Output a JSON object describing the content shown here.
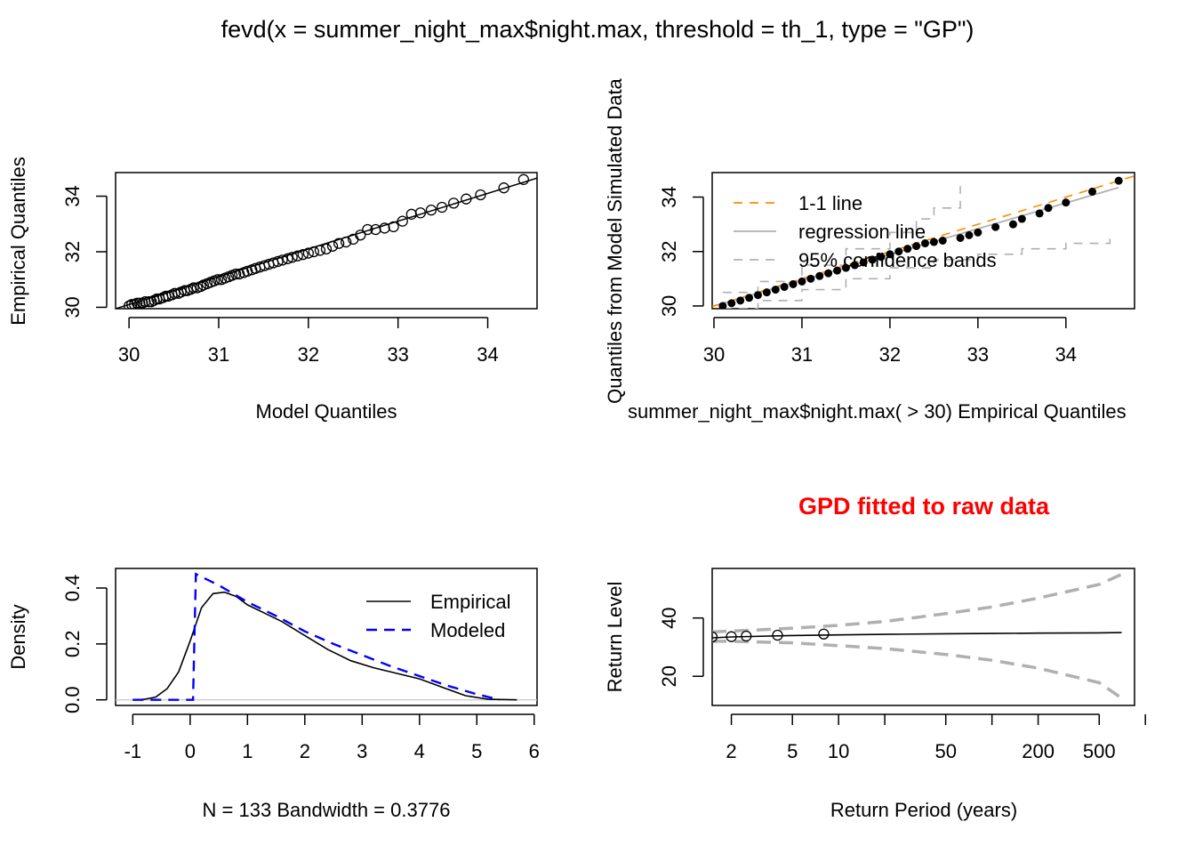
{
  "figure": {
    "title": "fevd(x = summer_night_max$night.max, threshold = th_1, type = \"GP\")"
  },
  "chart_data": [
    {
      "type": "scatter",
      "id": "qq",
      "xlabel": "Model Quantiles",
      "ylabel": "Empirical Quantiles",
      "xlim": [
        29.85,
        34.55
      ],
      "ylim": [
        29.95,
        34.85
      ],
      "xticks": [
        30,
        31,
        32,
        33,
        34
      ],
      "yticks": [
        30,
        32,
        34
      ],
      "points": [
        [
          30.0,
          30.05
        ],
        [
          30.03,
          30.1
        ],
        [
          30.06,
          30.1
        ],
        [
          30.09,
          30.15
        ],
        [
          30.12,
          30.15
        ],
        [
          30.15,
          30.15
        ],
        [
          30.18,
          30.2
        ],
        [
          30.22,
          30.2
        ],
        [
          30.25,
          30.2
        ],
        [
          30.28,
          30.25
        ],
        [
          30.31,
          30.3
        ],
        [
          30.34,
          30.3
        ],
        [
          30.38,
          30.35
        ],
        [
          30.41,
          30.4
        ],
        [
          30.44,
          30.4
        ],
        [
          30.48,
          30.45
        ],
        [
          30.51,
          30.5
        ],
        [
          30.55,
          30.5
        ],
        [
          30.58,
          30.55
        ],
        [
          30.62,
          30.6
        ],
        [
          30.65,
          30.6
        ],
        [
          30.69,
          30.65
        ],
        [
          30.72,
          30.7
        ],
        [
          30.76,
          30.7
        ],
        [
          30.8,
          30.75
        ],
        [
          30.83,
          30.8
        ],
        [
          30.87,
          30.85
        ],
        [
          30.91,
          30.9
        ],
        [
          30.95,
          30.95
        ],
        [
          30.99,
          31.0
        ],
        [
          31.03,
          31.0
        ],
        [
          31.07,
          31.05
        ],
        [
          31.11,
          31.1
        ],
        [
          31.15,
          31.15
        ],
        [
          31.19,
          31.2
        ],
        [
          31.23,
          31.2
        ],
        [
          31.28,
          31.25
        ],
        [
          31.32,
          31.3
        ],
        [
          31.37,
          31.35
        ],
        [
          31.41,
          31.4
        ],
        [
          31.46,
          31.45
        ],
        [
          31.51,
          31.5
        ],
        [
          31.56,
          31.55
        ],
        [
          31.61,
          31.6
        ],
        [
          31.66,
          31.65
        ],
        [
          31.71,
          31.7
        ],
        [
          31.77,
          31.75
        ],
        [
          31.82,
          31.8
        ],
        [
          31.88,
          31.85
        ],
        [
          31.94,
          31.9
        ],
        [
          32.0,
          31.95
        ],
        [
          32.06,
          32.0
        ],
        [
          32.13,
          32.05
        ],
        [
          32.2,
          32.1
        ],
        [
          32.27,
          32.2
        ],
        [
          32.34,
          32.3
        ],
        [
          32.42,
          32.35
        ],
        [
          32.5,
          32.45
        ],
        [
          32.58,
          32.6
        ],
        [
          32.66,
          32.8
        ],
        [
          32.75,
          32.8
        ],
        [
          32.85,
          32.85
        ],
        [
          32.95,
          32.9
        ],
        [
          33.05,
          33.1
        ],
        [
          33.15,
          33.35
        ],
        [
          33.25,
          33.4
        ],
        [
          33.37,
          33.5
        ],
        [
          33.49,
          33.6
        ],
        [
          33.62,
          33.75
        ],
        [
          33.76,
          33.9
        ],
        [
          33.92,
          34.05
        ],
        [
          34.18,
          34.3
        ],
        [
          34.4,
          34.6
        ]
      ],
      "line": [
        [
          29.85,
          29.95
        ],
        [
          34.55,
          34.65
        ]
      ]
    },
    {
      "type": "scatter",
      "id": "sim",
      "xlabel": "summer_night_max$night.max( > 30) Empirical Quantiles",
      "ylabel": "Quantiles from Model Simulated Data",
      "xlim": [
        29.98,
        34.78
      ],
      "ylim": [
        29.9,
        34.9
      ],
      "xticks": [
        30,
        31,
        32,
        33,
        34
      ],
      "yticks": [
        30,
        32,
        34
      ],
      "legend": [
        {
          "label": "1-1 line",
          "color": "#ff8c00",
          "dash": "10,8"
        },
        {
          "label": "regression line",
          "color": "#b0b0b0",
          "dash": ""
        },
        {
          "label": "95% confidence bands",
          "color": "#b0b0b0",
          "dash": "10,8"
        }
      ],
      "points": [
        [
          30.1,
          30.0
        ],
        [
          30.2,
          30.1
        ],
        [
          30.3,
          30.2
        ],
        [
          30.4,
          30.3
        ],
        [
          30.5,
          30.4
        ],
        [
          30.6,
          30.5
        ],
        [
          30.7,
          30.6
        ],
        [
          30.8,
          30.7
        ],
        [
          30.9,
          30.8
        ],
        [
          31.0,
          30.9
        ],
        [
          31.1,
          31.0
        ],
        [
          31.2,
          31.1
        ],
        [
          31.3,
          31.2
        ],
        [
          31.4,
          31.3
        ],
        [
          31.5,
          31.4
        ],
        [
          31.6,
          31.5
        ],
        [
          31.7,
          31.6
        ],
        [
          31.8,
          31.7
        ],
        [
          31.9,
          31.8
        ],
        [
          32.0,
          31.9
        ],
        [
          32.1,
          32.0
        ],
        [
          32.2,
          32.1
        ],
        [
          32.3,
          32.2
        ],
        [
          32.4,
          32.3
        ],
        [
          32.5,
          32.35
        ],
        [
          32.6,
          32.4
        ],
        [
          32.8,
          32.5
        ],
        [
          32.9,
          32.6
        ],
        [
          33.0,
          32.7
        ],
        [
          33.2,
          32.9
        ],
        [
          33.4,
          33.0
        ],
        [
          33.5,
          33.2
        ],
        [
          33.7,
          33.4
        ],
        [
          33.8,
          33.6
        ],
        [
          34.0,
          33.8
        ],
        [
          34.3,
          34.2
        ],
        [
          34.6,
          34.6
        ]
      ],
      "one_to_one": [
        [
          29.98,
          29.98
        ],
        [
          34.78,
          34.78
        ]
      ],
      "regression": [
        [
          30.0,
          30.0
        ],
        [
          34.6,
          34.35
        ]
      ],
      "upper_band": [
        [
          30.1,
          30.5
        ],
        [
          30.5,
          30.9
        ],
        [
          31.0,
          31.5
        ],
        [
          31.5,
          32.1
        ],
        [
          32.0,
          32.7
        ],
        [
          32.3,
          33.2
        ],
        [
          32.5,
          33.6
        ],
        [
          32.8,
          34.4
        ]
      ],
      "lower_band": [
        [
          30.1,
          29.9
        ],
        [
          30.5,
          30.2
        ],
        [
          31.0,
          30.6
        ],
        [
          31.5,
          31.0
        ],
        [
          32.0,
          31.4
        ],
        [
          32.5,
          31.7
        ],
        [
          33.0,
          31.9
        ],
        [
          33.5,
          32.1
        ],
        [
          34.0,
          32.3
        ],
        [
          34.5,
          32.5
        ]
      ]
    },
    {
      "type": "line",
      "id": "density",
      "xlabel": "N = 133   Bandwidth = 0.3776",
      "ylabel": "Density",
      "xlim": [
        -1.3,
        6.05
      ],
      "ylim": [
        -0.02,
        0.47
      ],
      "xticks": [
        -1,
        0,
        1,
        2,
        3,
        4,
        5,
        6
      ],
      "yticks": [
        0.0,
        0.2,
        0.4
      ],
      "ytick_labels": [
        "0.0",
        "0.2",
        "0.4"
      ],
      "legend": [
        {
          "label": "Empirical",
          "color": "#000000",
          "dash": ""
        },
        {
          "label": "Modeled",
          "color": "#0000ff",
          "dash": "12,8"
        }
      ],
      "series": [
        {
          "name": "Empirical",
          "x": [
            -1.0,
            -0.8,
            -0.6,
            -0.4,
            -0.2,
            0.0,
            0.2,
            0.4,
            0.6,
            0.8,
            1.0,
            1.3,
            1.6,
            2.0,
            2.4,
            2.8,
            3.2,
            3.6,
            4.0,
            4.4,
            4.8,
            5.2,
            5.7
          ],
          "y": [
            0.0,
            0.002,
            0.01,
            0.04,
            0.1,
            0.21,
            0.33,
            0.38,
            0.385,
            0.37,
            0.34,
            0.31,
            0.28,
            0.23,
            0.18,
            0.14,
            0.115,
            0.095,
            0.075,
            0.045,
            0.015,
            0.002,
            0.0
          ]
        },
        {
          "name": "Modeled",
          "x": [
            -1.0,
            0.05,
            0.1,
            0.5,
            1.0,
            1.5,
            2.0,
            2.5,
            3.0,
            3.5,
            4.0,
            4.5,
            5.0,
            5.4
          ],
          "y": [
            0.0,
            0.0,
            0.45,
            0.41,
            0.35,
            0.3,
            0.245,
            0.2,
            0.16,
            0.12,
            0.085,
            0.05,
            0.02,
            0.0
          ]
        }
      ],
      "zero_line": true
    },
    {
      "type": "line",
      "id": "return",
      "title": "GPD fitted to raw data",
      "title_color": "#ff0000",
      "xlabel": "Return Period (years)",
      "ylabel": "Return Level",
      "xscale": "log",
      "xlim": [
        1.5,
        850
      ],
      "ylim": [
        10,
        57
      ],
      "xticks": [
        2,
        5,
        10,
        50,
        200,
        500
      ],
      "xticks_minor": [
        20,
        100,
        1000
      ],
      "yticks": [
        20,
        40
      ],
      "series": [
        {
          "name": "",
          "x": [
            1.5,
            2,
            5,
            10,
            20,
            50,
            100,
            200,
            500,
            700
          ],
          "y": [
            33.2,
            33.5,
            34.0,
            34.2,
            34.4,
            34.6,
            34.7,
            34.8,
            34.9,
            35.0
          ]
        }
      ],
      "upper_ci": [
        [
          1.5,
          35.2
        ],
        [
          2,
          35.5
        ],
        [
          5,
          36.5
        ],
        [
          10,
          37.5
        ],
        [
          20,
          38.8
        ],
        [
          50,
          41.5
        ],
        [
          100,
          43.8
        ],
        [
          200,
          46.8
        ],
        [
          500,
          51.5
        ],
        [
          700,
          55.0
        ]
      ],
      "lower_ci": [
        [
          1.5,
          32.0
        ],
        [
          2,
          32.0
        ],
        [
          5,
          31.5
        ],
        [
          10,
          30.5
        ],
        [
          20,
          29.5
        ],
        [
          50,
          27.5
        ],
        [
          100,
          25.5
        ],
        [
          200,
          22.8
        ],
        [
          500,
          17.8
        ],
        [
          700,
          12.5
        ]
      ],
      "points": [
        [
          1.5,
          33.5
        ],
        [
          2.0,
          33.6
        ],
        [
          2.5,
          33.8
        ],
        [
          4.0,
          34.1
        ],
        [
          8.0,
          34.5
        ]
      ]
    }
  ]
}
